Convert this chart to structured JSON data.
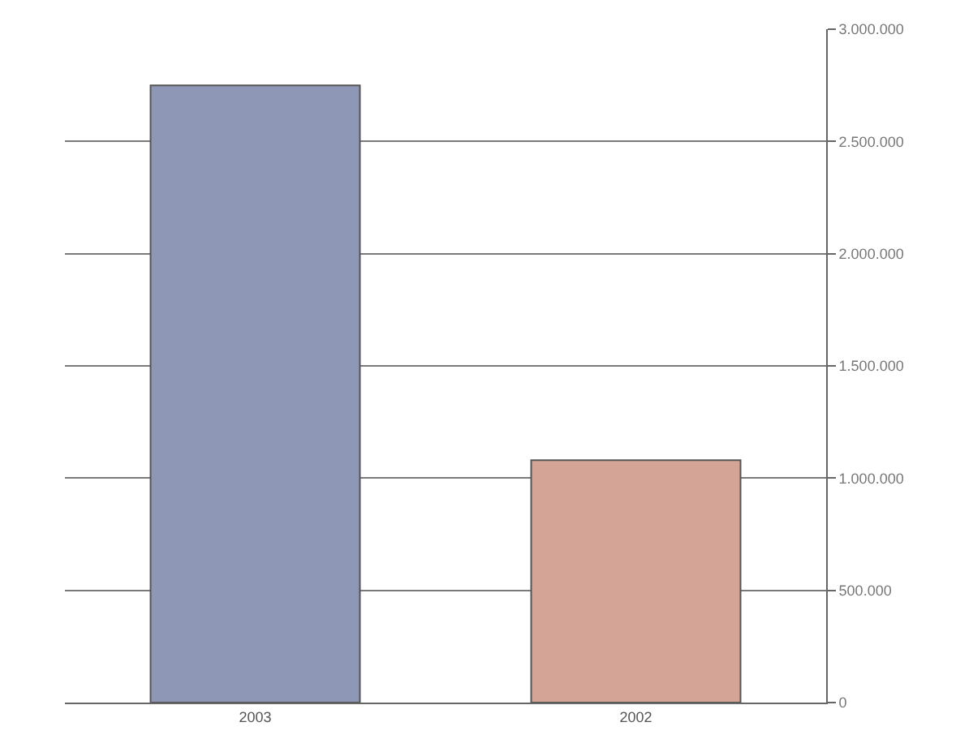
{
  "chart_data": {
    "type": "bar",
    "categories": [
      "2003",
      "2002"
    ],
    "series": [
      {
        "values": [
          2750000,
          1080000
        ],
        "colors": [
          "#8e97b6",
          "#d4a497"
        ]
      }
    ],
    "ylim": [
      0,
      3000000
    ],
    "yticks": [
      0,
      {
        "value": 500000,
        "label": "500.000"
      },
      {
        "value": 1000000,
        "label": "1.000.000"
      },
      {
        "value": 1500000,
        "label": "1.500.000"
      },
      {
        "value": 2000000,
        "label": "2.000.000"
      },
      {
        "value": 2500000,
        "label": "2.500.000"
      },
      {
        "value": 3000000,
        "label": "3.000.000"
      }
    ],
    "grid": "y",
    "legend": false
  }
}
